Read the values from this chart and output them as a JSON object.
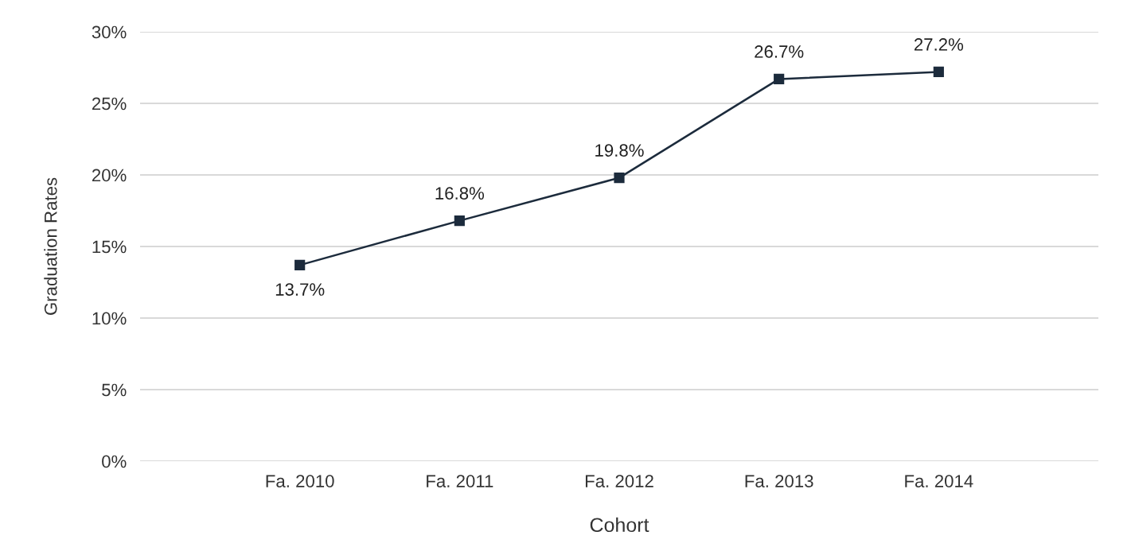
{
  "chart_data": {
    "type": "line",
    "xlabel": "Cohort",
    "ylabel": "Graduation Rates",
    "categories": [
      "Fa. 2010",
      "Fa. 2011",
      "Fa. 2012",
      "Fa. 2013",
      "Fa. 2014"
    ],
    "series": [
      {
        "color": "#1c2b3c",
        "values": [
          13.7,
          16.8,
          19.8,
          26.7,
          27.2
        ],
        "value_labels": [
          "13.7%",
          "16.8%",
          "19.8%",
          "26.7%",
          "27.2%"
        ]
      }
    ],
    "ylim": [
      0,
      30
    ],
    "yticks": [
      {
        "value": 0,
        "label": "0%"
      },
      {
        "value": 5,
        "label": "5%"
      },
      {
        "value": 10,
        "label": "10%"
      },
      {
        "value": 15,
        "label": "15%"
      },
      {
        "value": 20,
        "label": "20%"
      },
      {
        "value": 25,
        "label": "25%"
      },
      {
        "value": 30,
        "label": "30%"
      }
    ],
    "grid": "y",
    "marker": "square",
    "line_style": "solid",
    "legend": false
  }
}
